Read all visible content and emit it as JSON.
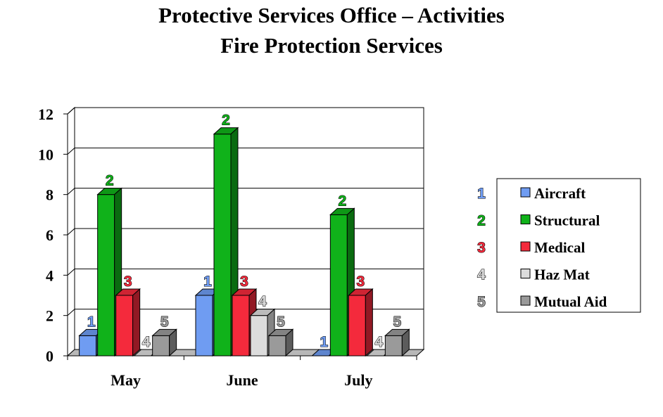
{
  "title_line1": "Protective Services Office – Activities",
  "title_line2": "Fire Protection Services",
  "chart_data": {
    "type": "bar",
    "title": "Protective Services Office – Activities / Fire Protection Services",
    "categories": [
      "May",
      "June",
      "July"
    ],
    "series": [
      {
        "name": "Aircraft",
        "label": "1",
        "color": "#6f9cf2",
        "values": [
          1,
          3,
          0
        ]
      },
      {
        "name": "Structural",
        "label": "2",
        "color": "#10b21a",
        "values": [
          8,
          11,
          7
        ]
      },
      {
        "name": "Medical",
        "label": "3",
        "color": "#f42a3c",
        "values": [
          3,
          3,
          3
        ]
      },
      {
        "name": "Haz Mat",
        "label": "4",
        "color": "#dcdcdc",
        "values": [
          0,
          2,
          0
        ]
      },
      {
        "name": "Mutual Aid",
        "label": "5",
        "color": "#9a9a9a",
        "values": [
          1,
          1,
          1
        ]
      }
    ],
    "ylim": [
      0,
      12
    ],
    "yticks": [
      0,
      2,
      4,
      6,
      8,
      10,
      12
    ],
    "grid": true,
    "legend": "right",
    "xlabel": "",
    "ylabel": ""
  }
}
